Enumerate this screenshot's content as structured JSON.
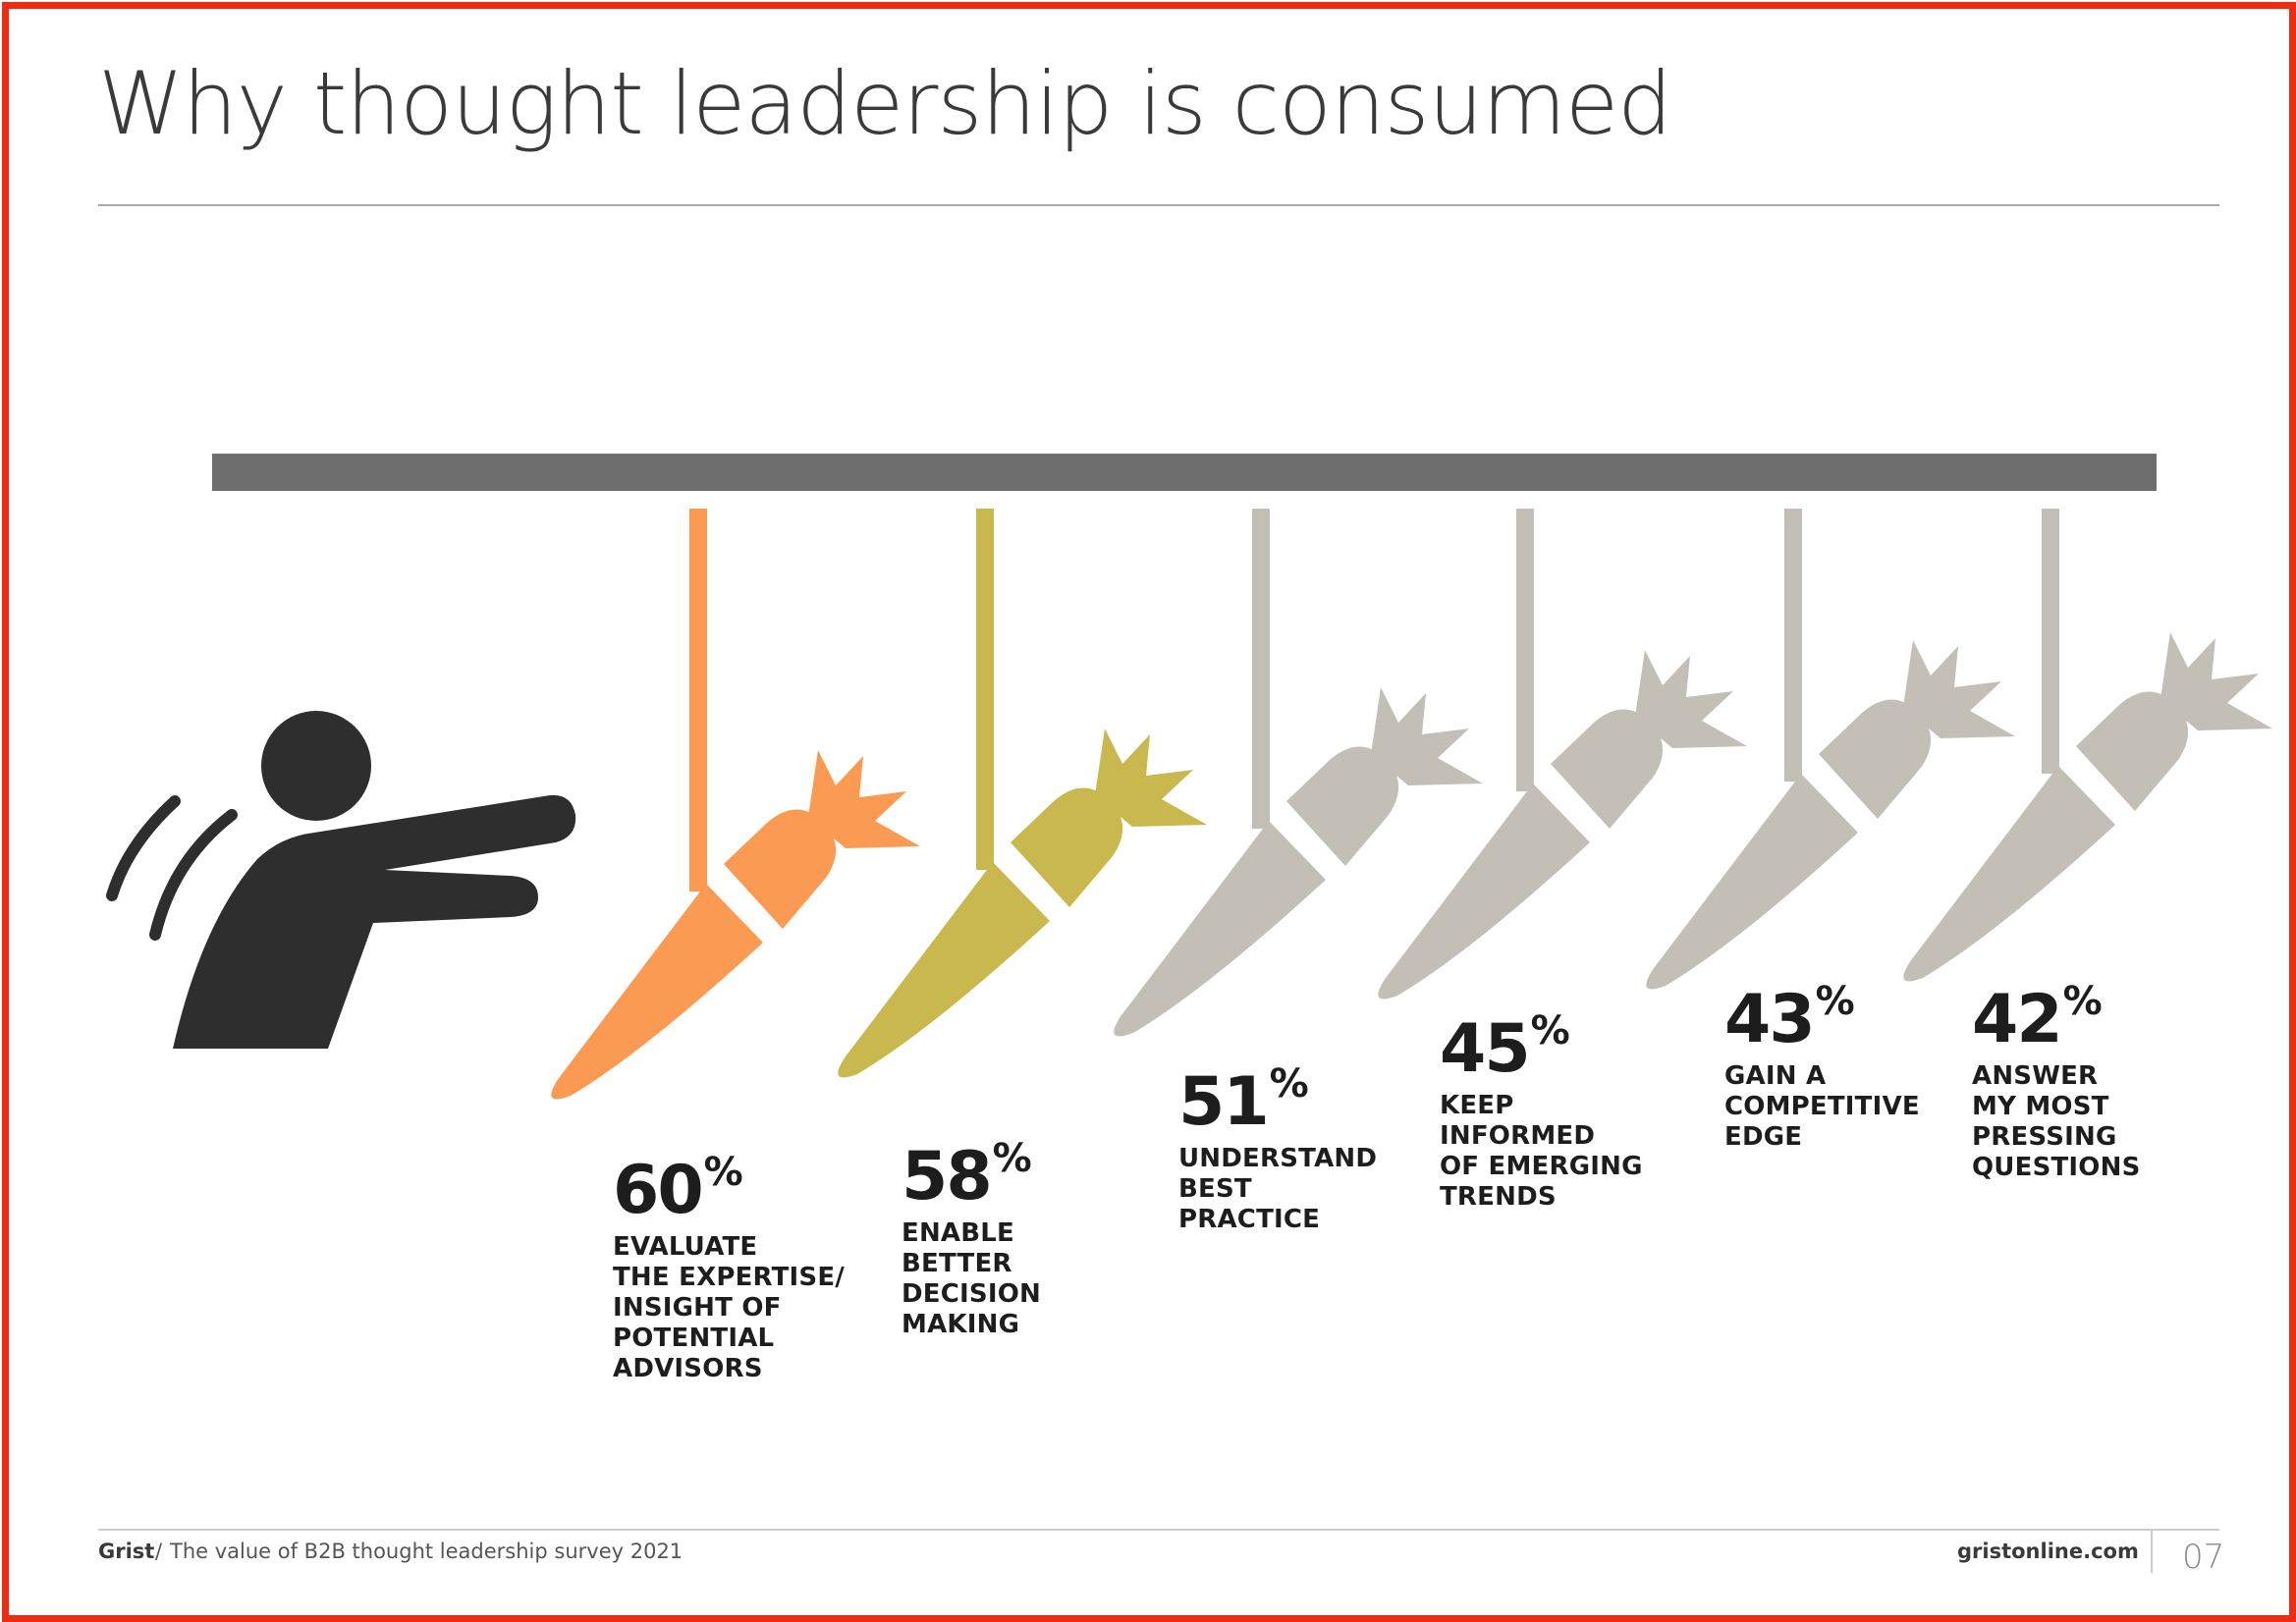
{
  "page": {
    "title": "Why thought leadership is consumed"
  },
  "colors": {
    "frame": "#ef2b12",
    "bar": "#6e6e6e",
    "figure": "#2e2e2e",
    "carrot_highlight_1": "#fb9a52",
    "carrot_highlight_2": "#c8b84d",
    "carrot_neutral": "#c4bfb6"
  },
  "stats": [
    {
      "value": "60",
      "unit": "%",
      "label": "EVALUATE\nTHE EXPERTISE/\nINSIGHT OF\nPOTENTIAL\nADVISORS",
      "color": "#fb9a52"
    },
    {
      "value": "58",
      "unit": "%",
      "label": "ENABLE\nBETTER\nDECISION\nMAKING",
      "color": "#c8b84d"
    },
    {
      "value": "51",
      "unit": "%",
      "label": "UNDERSTAND\nBEST\nPRACTICE",
      "color": "#c4bfb6"
    },
    {
      "value": "45",
      "unit": "%",
      "label": "KEEP\nINFORMED\nOF EMERGING\nTRENDS",
      "color": "#c4bfb6"
    },
    {
      "value": "43",
      "unit": "%",
      "label": "GAIN A\nCOMPETITIVE\nEDGE",
      "color": "#c4bfb6"
    },
    {
      "value": "42",
      "unit": "%",
      "label": "ANSWER\nMY MOST\nPRESSING\nQUESTIONS",
      "color": "#c4bfb6"
    }
  ],
  "footer": {
    "brand": "Grist",
    "separator": "/",
    "text": "The value of B2B thought leadership survey 2021",
    "url": "gristonline.com",
    "page_number": "07"
  },
  "icons": [
    "person-reaching-icon",
    "carrot-icon"
  ]
}
